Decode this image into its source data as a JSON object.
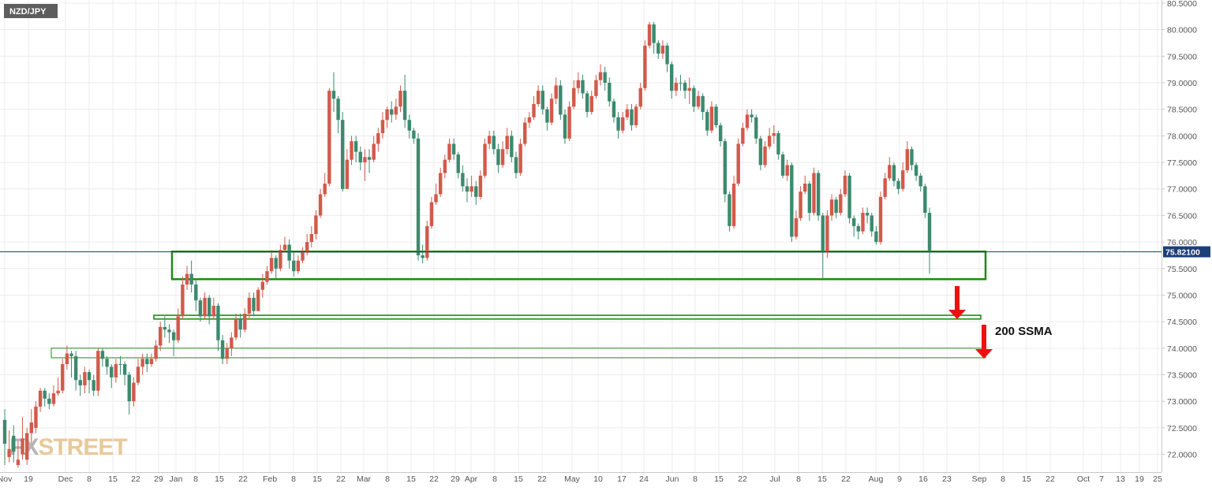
{
  "symbol_tag": "NZD/JPY",
  "watermark": {
    "part1": "FX",
    "part2": "STREET"
  },
  "annotation_text": "200 SSMA",
  "current_price_label": "75.82100",
  "colors": {
    "up": "#3c8a6e",
    "down": "#d25a4b",
    "zone": "#1f8a14",
    "arrow": "#ee1111",
    "grid": "#ececf0",
    "price_line": "#1c3f7a",
    "price_tag_bg": "#1c3f7a",
    "symbol_tag_bg": "#5d5d5d",
    "axis_text": "#555555"
  },
  "chart_data": {
    "type": "candlestick",
    "ylim": [
      71.8,
      80.5
    ],
    "y_ticks": [
      "80.5000",
      "80.0000",
      "79.5000",
      "79.0000",
      "78.5000",
      "78.0000",
      "77.5000",
      "77.0000",
      "76.5000",
      "76.0000",
      "75.5000",
      "75.0000",
      "74.5000",
      "74.0000",
      "73.5000",
      "73.0000",
      "72.5000",
      "72.0000"
    ],
    "x_ticks": [
      "Nov",
      "19",
      "Dec",
      "8",
      "15",
      "22",
      "29",
      "Jan",
      "8",
      "15",
      "22",
      "Feb",
      "8",
      "15",
      "22",
      "Mar",
      "8",
      "15",
      "22",
      "29",
      "Apr",
      "8",
      "15",
      "22",
      "May",
      "10",
      "17",
      "24",
      "Jun",
      "8",
      "15",
      "22",
      "Jul",
      "8",
      "15",
      "22",
      "Aug",
      "9",
      "16",
      "23",
      "Sep",
      "8",
      "15",
      "22",
      "Oct",
      "7",
      "13",
      "19",
      "25"
    ],
    "current_price": 75.821,
    "zones": [
      {
        "low": 75.3,
        "high": 75.82,
        "from": "Jan 1",
        "to": "Aug 31"
      },
      {
        "low": 74.55,
        "high": 74.62,
        "from": "Dec 28",
        "to": "Aug 30"
      },
      {
        "low": 73.82,
        "high": 74.0,
        "from": "Nov 26",
        "to": "Aug 31"
      }
    ],
    "candles_ohlc": [
      [
        72.2,
        72.85,
        71.8,
        72.65
      ],
      [
        72.1,
        72.45,
        71.85,
        71.95
      ],
      [
        72.05,
        72.55,
        71.85,
        72.35
      ],
      [
        71.9,
        72.25,
        71.75,
        71.8
      ],
      [
        72.3,
        72.7,
        71.9,
        72.0
      ],
      [
        72.4,
        72.5,
        71.8,
        71.9
      ],
      [
        72.6,
        72.85,
        72.2,
        72.4
      ],
      [
        72.9,
        73.0,
        72.4,
        72.5
      ],
      [
        73.2,
        73.25,
        72.8,
        72.9
      ],
      [
        73.05,
        73.25,
        72.9,
        73.2
      ],
      [
        72.95,
        73.15,
        72.85,
        73.05
      ],
      [
        73.15,
        73.3,
        72.9,
        72.95
      ],
      [
        73.2,
        73.45,
        73.1,
        73.15
      ],
      [
        73.7,
        73.8,
        73.15,
        73.2
      ],
      [
        73.9,
        74.05,
        73.6,
        73.7
      ],
      [
        73.85,
        73.95,
        73.45,
        73.9
      ],
      [
        73.4,
        73.95,
        73.2,
        73.85
      ],
      [
        73.3,
        73.5,
        73.1,
        73.4
      ],
      [
        73.55,
        73.65,
        73.15,
        73.3
      ],
      [
        73.4,
        73.6,
        73.15,
        73.55
      ],
      [
        73.2,
        73.5,
        73.1,
        73.4
      ],
      [
        73.95,
        74.0,
        73.1,
        73.2
      ],
      [
        73.8,
        74.0,
        73.65,
        73.95
      ],
      [
        73.65,
        73.85,
        73.5,
        73.8
      ],
      [
        73.45,
        73.7,
        73.25,
        73.65
      ],
      [
        73.7,
        73.8,
        73.35,
        73.45
      ],
      [
        73.7,
        73.85,
        73.5,
        73.7
      ],
      [
        73.5,
        73.75,
        73.3,
        73.7
      ],
      [
        73.0,
        73.55,
        72.75,
        73.5
      ],
      [
        73.35,
        73.45,
        72.9,
        73.0
      ],
      [
        73.65,
        73.8,
        73.3,
        73.35
      ],
      [
        73.8,
        73.9,
        73.5,
        73.65
      ],
      [
        73.7,
        73.9,
        73.55,
        73.8
      ],
      [
        73.8,
        73.9,
        73.65,
        73.7
      ],
      [
        74.05,
        74.15,
        73.75,
        73.8
      ],
      [
        74.4,
        74.5,
        73.95,
        74.05
      ],
      [
        74.35,
        74.6,
        74.2,
        74.4
      ],
      [
        74.3,
        74.45,
        74.1,
        74.35
      ],
      [
        74.15,
        74.35,
        73.85,
        74.3
      ],
      [
        74.6,
        74.75,
        74.1,
        74.15
      ],
      [
        75.2,
        75.35,
        74.55,
        74.6
      ],
      [
        75.4,
        75.55,
        75.1,
        75.2
      ],
      [
        75.2,
        75.65,
        75.05,
        75.4
      ],
      [
        74.9,
        75.3,
        74.7,
        75.2
      ],
      [
        74.6,
        74.95,
        74.5,
        74.9
      ],
      [
        74.95,
        75.05,
        74.55,
        74.6
      ],
      [
        74.6,
        75.0,
        74.45,
        74.95
      ],
      [
        74.8,
        74.95,
        74.55,
        74.6
      ],
      [
        74.15,
        74.85,
        73.95,
        74.8
      ],
      [
        73.8,
        74.25,
        73.7,
        74.15
      ],
      [
        74.0,
        74.1,
        73.7,
        73.8
      ],
      [
        74.2,
        74.3,
        73.85,
        74.0
      ],
      [
        74.55,
        74.65,
        74.15,
        74.2
      ],
      [
        74.35,
        74.65,
        74.2,
        74.55
      ],
      [
        74.65,
        74.75,
        74.3,
        74.35
      ],
      [
        74.95,
        75.05,
        74.55,
        74.65
      ],
      [
        74.7,
        75.05,
        74.6,
        74.95
      ],
      [
        75.1,
        75.15,
        74.7,
        74.7
      ],
      [
        75.25,
        75.4,
        74.95,
        75.1
      ],
      [
        75.45,
        75.55,
        75.2,
        75.25
      ],
      [
        75.7,
        75.85,
        75.4,
        75.45
      ],
      [
        75.5,
        75.75,
        75.3,
        75.7
      ],
      [
        75.85,
        75.95,
        75.45,
        75.5
      ],
      [
        75.95,
        76.1,
        75.8,
        75.85
      ],
      [
        75.65,
        76.05,
        75.5,
        75.95
      ],
      [
        75.45,
        75.8,
        75.35,
        75.65
      ],
      [
        75.65,
        75.75,
        75.4,
        75.45
      ],
      [
        75.8,
        75.9,
        75.6,
        75.65
      ],
      [
        76.0,
        76.15,
        75.75,
        75.8
      ],
      [
        76.15,
        76.3,
        75.9,
        76.0
      ],
      [
        76.5,
        76.6,
        76.05,
        76.15
      ],
      [
        76.9,
        77.0,
        76.45,
        76.5
      ],
      [
        77.1,
        77.3,
        76.85,
        76.9
      ],
      [
        78.85,
        78.9,
        77.05,
        77.1
      ],
      [
        78.7,
        79.2,
        78.45,
        78.85
      ],
      [
        78.3,
        78.75,
        78.05,
        78.7
      ],
      [
        77.0,
        78.45,
        76.95,
        78.3
      ],
      [
        77.55,
        77.75,
        77.05,
        77.0
      ],
      [
        77.9,
        78.0,
        77.45,
        77.55
      ],
      [
        77.7,
        78.0,
        77.5,
        77.9
      ],
      [
        77.5,
        77.8,
        77.35,
        77.7
      ],
      [
        77.6,
        77.75,
        77.15,
        77.5
      ],
      [
        77.55,
        77.75,
        77.3,
        77.6
      ],
      [
        77.85,
        78.0,
        77.5,
        77.55
      ],
      [
        78.05,
        78.15,
        77.7,
        77.85
      ],
      [
        78.3,
        78.45,
        77.95,
        78.05
      ],
      [
        78.5,
        78.55,
        78.15,
        78.3
      ],
      [
        78.4,
        78.65,
        78.25,
        78.5
      ],
      [
        78.55,
        78.7,
        78.3,
        78.4
      ],
      [
        78.85,
        78.95,
        78.45,
        78.55
      ],
      [
        78.3,
        79.15,
        78.15,
        78.85
      ],
      [
        78.1,
        78.4,
        77.95,
        78.3
      ],
      [
        77.95,
        78.15,
        77.85,
        78.1
      ],
      [
        75.75,
        78.05,
        75.65,
        77.95
      ],
      [
        75.7,
        75.95,
        75.6,
        75.75
      ],
      [
        76.3,
        76.4,
        75.65,
        75.7
      ],
      [
        76.75,
        76.85,
        76.25,
        76.3
      ],
      [
        76.9,
        77.1,
        76.7,
        76.75
      ],
      [
        77.3,
        77.4,
        76.85,
        76.9
      ],
      [
        77.55,
        77.65,
        77.2,
        77.3
      ],
      [
        77.85,
        77.95,
        77.5,
        77.55
      ],
      [
        77.65,
        77.95,
        77.55,
        77.85
      ],
      [
        77.3,
        77.7,
        77.2,
        77.65
      ],
      [
        77.05,
        77.45,
        76.95,
        77.3
      ],
      [
        76.95,
        77.2,
        76.75,
        77.05
      ],
      [
        77.05,
        77.25,
        76.85,
        76.95
      ],
      [
        76.85,
        77.15,
        76.7,
        77.05
      ],
      [
        77.25,
        77.35,
        76.8,
        76.85
      ],
      [
        77.85,
        77.95,
        77.2,
        77.25
      ],
      [
        78.0,
        78.1,
        77.75,
        77.85
      ],
      [
        77.75,
        78.1,
        77.65,
        78.0
      ],
      [
        77.45,
        77.85,
        77.3,
        77.75
      ],
      [
        77.75,
        77.9,
        77.4,
        77.45
      ],
      [
        78.0,
        78.15,
        77.65,
        77.75
      ],
      [
        77.6,
        78.1,
        77.5,
        78.0
      ],
      [
        77.3,
        77.7,
        77.2,
        77.6
      ],
      [
        77.85,
        77.95,
        77.25,
        77.3
      ],
      [
        78.25,
        78.35,
        77.8,
        77.85
      ],
      [
        78.35,
        78.45,
        78.15,
        78.25
      ],
      [
        78.6,
        78.75,
        78.3,
        78.35
      ],
      [
        78.85,
        78.95,
        78.55,
        78.6
      ],
      [
        78.5,
        78.95,
        78.4,
        78.85
      ],
      [
        78.25,
        78.55,
        78.1,
        78.5
      ],
      [
        78.7,
        78.8,
        78.2,
        78.25
      ],
      [
        78.95,
        79.1,
        78.6,
        78.7
      ],
      [
        78.4,
        79.05,
        78.3,
        78.95
      ],
      [
        77.95,
        78.5,
        77.85,
        78.4
      ],
      [
        78.55,
        78.65,
        77.9,
        77.95
      ],
      [
        78.9,
        79.05,
        78.5,
        78.55
      ],
      [
        79.05,
        79.2,
        78.8,
        78.9
      ],
      [
        78.8,
        79.15,
        78.7,
        79.05
      ],
      [
        78.45,
        78.85,
        78.35,
        78.8
      ],
      [
        78.75,
        78.85,
        78.4,
        78.45
      ],
      [
        79.05,
        79.15,
        78.7,
        78.75
      ],
      [
        79.2,
        79.35,
        78.95,
        79.05
      ],
      [
        79.0,
        79.3,
        78.85,
        79.2
      ],
      [
        78.65,
        79.1,
        78.55,
        79.0
      ],
      [
        78.35,
        78.7,
        78.25,
        78.65
      ],
      [
        78.1,
        78.45,
        77.95,
        78.35
      ],
      [
        78.35,
        78.45,
        78.05,
        78.1
      ],
      [
        78.5,
        78.6,
        78.3,
        78.35
      ],
      [
        78.2,
        78.6,
        78.1,
        78.5
      ],
      [
        78.55,
        78.6,
        78.15,
        78.2
      ],
      [
        78.9,
        79.0,
        78.5,
        78.55
      ],
      [
        79.7,
        79.8,
        78.85,
        78.9
      ],
      [
        80.1,
        80.15,
        79.65,
        79.7
      ],
      [
        79.75,
        80.15,
        79.55,
        80.1
      ],
      [
        79.55,
        79.8,
        79.45,
        79.75
      ],
      [
        79.7,
        79.8,
        79.45,
        79.55
      ],
      [
        79.35,
        79.75,
        79.2,
        79.7
      ],
      [
        78.85,
        79.4,
        78.7,
        79.35
      ],
      [
        79.0,
        79.1,
        78.75,
        78.85
      ],
      [
        79.0,
        79.15,
        78.85,
        79.0
      ],
      [
        78.85,
        79.05,
        78.7,
        79.0
      ],
      [
        78.9,
        79.1,
        78.6,
        78.85
      ],
      [
        78.55,
        78.95,
        78.45,
        78.9
      ],
      [
        78.75,
        78.85,
        78.5,
        78.55
      ],
      [
        78.45,
        78.8,
        78.3,
        78.75
      ],
      [
        78.1,
        78.5,
        78.0,
        78.45
      ],
      [
        78.55,
        78.65,
        78.05,
        78.1
      ],
      [
        78.2,
        78.6,
        78.15,
        78.55
      ],
      [
        77.9,
        78.25,
        77.8,
        78.2
      ],
      [
        76.9,
        77.95,
        76.75,
        77.9
      ],
      [
        76.3,
        76.95,
        76.2,
        76.9
      ],
      [
        77.1,
        77.25,
        76.25,
        76.3
      ],
      [
        77.85,
        77.95,
        77.05,
        77.1
      ],
      [
        78.15,
        78.25,
        77.8,
        77.85
      ],
      [
        78.4,
        78.5,
        78.1,
        78.15
      ],
      [
        78.35,
        78.5,
        78.25,
        78.4
      ],
      [
        77.95,
        78.4,
        77.85,
        78.35
      ],
      [
        77.45,
        78.0,
        77.35,
        77.95
      ],
      [
        77.8,
        77.9,
        77.4,
        77.45
      ],
      [
        78.0,
        78.15,
        77.75,
        77.8
      ],
      [
        78.05,
        78.2,
        77.85,
        78.0
      ],
      [
        77.65,
        78.1,
        77.55,
        78.05
      ],
      [
        77.25,
        77.7,
        77.2,
        77.65
      ],
      [
        77.45,
        77.55,
        77.15,
        77.25
      ],
      [
        76.1,
        77.5,
        76.0,
        77.45
      ],
      [
        76.45,
        76.6,
        76.05,
        76.1
      ],
      [
        76.95,
        77.05,
        76.4,
        76.45
      ],
      [
        77.1,
        77.25,
        76.9,
        76.95
      ],
      [
        76.55,
        77.15,
        76.4,
        77.1
      ],
      [
        77.3,
        77.4,
        76.5,
        76.55
      ],
      [
        76.5,
        77.35,
        76.4,
        77.3
      ],
      [
        75.8,
        76.55,
        75.3,
        76.5
      ],
      [
        76.5,
        76.6,
        75.7,
        75.8
      ],
      [
        76.8,
        76.9,
        76.4,
        76.5
      ],
      [
        76.55,
        76.85,
        76.45,
        76.8
      ],
      [
        76.9,
        77.0,
        76.5,
        76.55
      ],
      [
        77.25,
        77.35,
        76.85,
        76.9
      ],
      [
        76.45,
        77.3,
        76.35,
        77.25
      ],
      [
        76.3,
        76.5,
        76.1,
        76.45
      ],
      [
        76.2,
        76.35,
        76.05,
        76.3
      ],
      [
        76.55,
        76.65,
        76.15,
        76.2
      ],
      [
        76.5,
        76.65,
        76.35,
        76.55
      ],
      [
        76.2,
        76.55,
        76.1,
        76.5
      ],
      [
        76.0,
        76.3,
        75.95,
        76.2
      ],
      [
        76.85,
        76.95,
        75.95,
        76.0
      ],
      [
        77.2,
        77.3,
        76.8,
        76.85
      ],
      [
        77.45,
        77.6,
        77.15,
        77.2
      ],
      [
        77.15,
        77.5,
        77.05,
        77.45
      ],
      [
        77.0,
        77.2,
        76.9,
        77.15
      ],
      [
        77.35,
        77.5,
        76.95,
        77.0
      ],
      [
        77.75,
        77.9,
        77.3,
        77.35
      ],
      [
        77.45,
        77.8,
        77.35,
        77.75
      ],
      [
        77.25,
        77.5,
        77.15,
        77.45
      ],
      [
        77.05,
        77.3,
        76.95,
        77.25
      ],
      [
        76.55,
        77.1,
        76.45,
        77.05
      ],
      [
        75.82,
        76.65,
        75.4,
        76.55
      ]
    ]
  }
}
